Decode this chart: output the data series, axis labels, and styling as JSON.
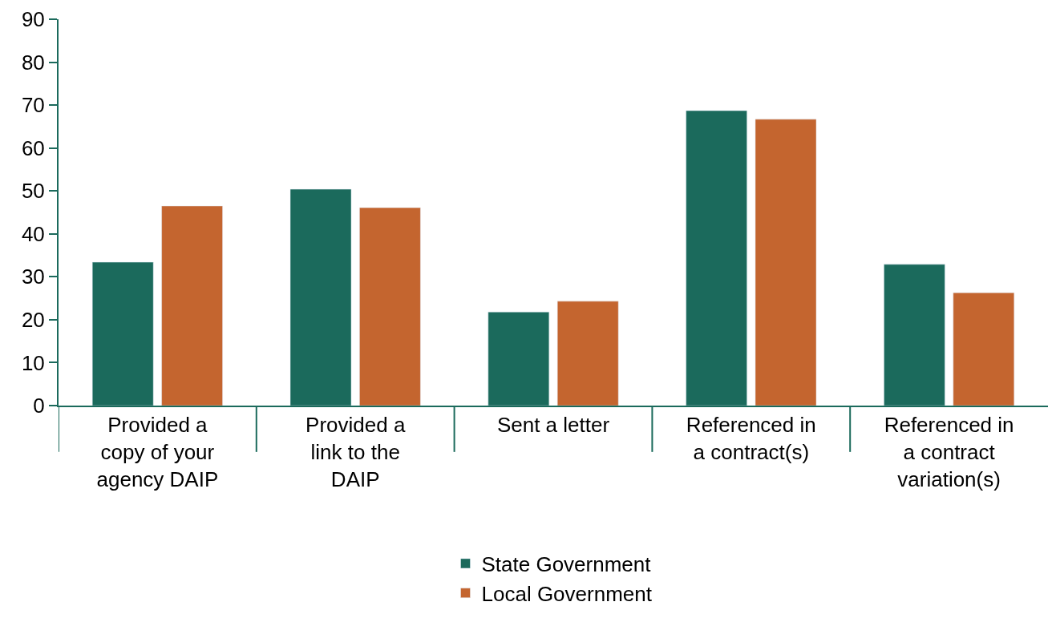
{
  "chart_data": {
    "type": "bar",
    "categories": [
      "Provided a copy of your agency DAIP",
      "Provided a link to the DAIP",
      "Sent a letter",
      "Referenced in a contract(s)",
      "Referenced in a contract variation(s)"
    ],
    "series": [
      {
        "name": "State Government",
        "color": "#1b6a5c",
        "values": [
          33.4,
          50.4,
          21.8,
          68.7,
          32.9
        ]
      },
      {
        "name": "Local Government",
        "color": "#c4652f",
        "values": [
          46.5,
          46.1,
          24.3,
          66.7,
          26.3
        ]
      }
    ],
    "ylim": [
      0,
      90
    ],
    "yticks": [
      0,
      10,
      20,
      30,
      40,
      50,
      60,
      70,
      80,
      90
    ],
    "legend": "bottom"
  }
}
